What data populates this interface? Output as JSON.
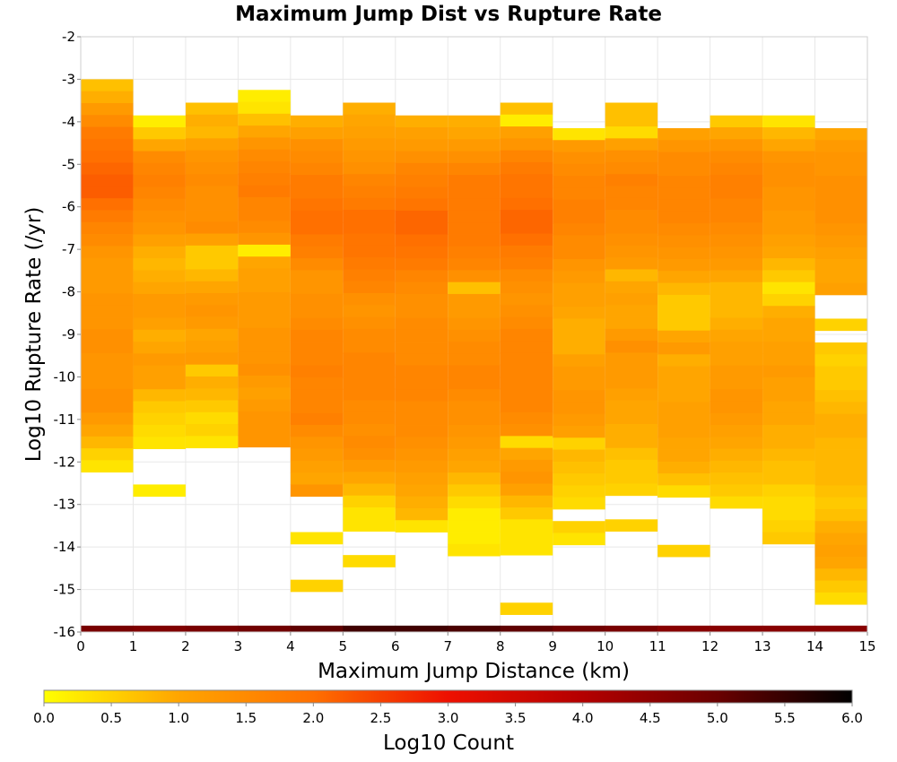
{
  "chart_data": {
    "type": "heatmap",
    "title": "Maximum Jump Dist vs Rupture Rate",
    "xlabel": "Maximum Jump Distance (km)",
    "ylabel": "Log10 Rupture Rate (/yr)",
    "xlim": [
      0,
      15
    ],
    "ylim": [
      -16,
      -2
    ],
    "x_ticks": [
      "0",
      "1",
      "2",
      "3",
      "4",
      "5",
      "6",
      "7",
      "8",
      "9",
      "10",
      "11",
      "12",
      "13",
      "14",
      "15"
    ],
    "y_ticks": [
      "-2",
      "-3",
      "-4",
      "-5",
      "-6",
      "-7",
      "-8",
      "-9",
      "-10",
      "-11",
      "-12",
      "-13",
      "-14",
      "-15",
      "-16"
    ],
    "grid": true,
    "cell_width": 1,
    "cell_height": 0.28,
    "colorbar": {
      "label": "Log10 Count",
      "min": 0,
      "max": 6,
      "ticks": [
        "0.0",
        "0.5",
        "1.0",
        "1.5",
        "2.0",
        "2.5",
        "3.0",
        "3.5",
        "4.0",
        "4.5",
        "5.0",
        "5.5",
        "6.0"
      ],
      "color_stops": [
        "#ffff00",
        "#ffa500",
        "#ff7000",
        "#ee1000",
        "#b40000",
        "#6a0000",
        "#000000"
      ],
      "position": "bottom"
    },
    "columns": [
      {
        "x_start": 0,
        "y_top": -3.0,
        "values": [
          0.7,
          0.9,
          1.2,
          1.5,
          1.8,
          1.9,
          2.0,
          2.1,
          2.2,
          2.2,
          2.0,
          1.8,
          1.6,
          1.5,
          1.3,
          1.2,
          1.2,
          1.2,
          1.3,
          1.3,
          1.3,
          1.4,
          1.4,
          1.3,
          1.3,
          1.3,
          1.4,
          1.4,
          1.2,
          1.0,
          0.8,
          0.5,
          0.3
        ]
      },
      {
        "x_start": 1,
        "y_top": -3.85,
        "values": [
          0.2,
          0.6,
          1.0,
          1.5,
          1.6,
          1.7,
          1.6,
          1.5,
          1.4,
          1.3,
          1.1,
          0.9,
          0.8,
          0.9,
          1.0,
          1.2,
          1.2,
          1.1,
          0.9,
          1.0,
          1.2,
          1.1,
          1.1,
          0.8,
          0.6,
          0.5,
          0.4,
          0.3,
          null,
          null,
          null,
          0.2
        ]
      },
      {
        "x_start": 2,
        "y_top": -3.55,
        "values": [
          0.7,
          0.9,
          0.8,
          1.1,
          1.3,
          1.4,
          1.5,
          1.4,
          1.4,
          1.4,
          1.5,
          1.1,
          0.6,
          0.6,
          0.8,
          1.0,
          1.2,
          1.3,
          1.2,
          1.0,
          1.1,
          1.2,
          0.6,
          0.9,
          0.8,
          0.6,
          0.4,
          0.5,
          0.3
        ]
      },
      {
        "x_start": 3,
        "y_top": -3.25,
        "values": [
          0.2,
          0.3,
          0.7,
          1.0,
          1.3,
          1.5,
          1.6,
          1.7,
          1.8,
          1.6,
          1.6,
          1.5,
          1.3,
          0.2,
          1.0,
          1.1,
          1.1,
          1.2,
          1.2,
          1.2,
          1.3,
          1.3,
          1.3,
          1.4,
          1.2,
          1.1,
          1.2,
          1.3,
          1.3,
          1.3
        ]
      },
      {
        "x_start": 4,
        "y_top": -3.85,
        "values": [
          0.9,
          1.1,
          1.4,
          1.5,
          1.6,
          1.8,
          1.8,
          1.9,
          2.0,
          2.0,
          1.8,
          1.7,
          1.5,
          1.3,
          1.3,
          1.4,
          1.4,
          1.5,
          1.6,
          1.6,
          1.6,
          1.7,
          1.6,
          1.6,
          1.6,
          1.7,
          1.5,
          1.3,
          1.2,
          1.1,
          1.0,
          1.3,
          null,
          null,
          null,
          0.3,
          null,
          null,
          null,
          0.5
        ]
      },
      {
        "x_start": 5,
        "y_top": -3.55,
        "values": [
          0.9,
          1.0,
          1.1,
          1.2,
          1.3,
          1.4,
          1.6,
          1.7,
          1.8,
          2.0,
          2.0,
          1.9,
          1.9,
          1.8,
          1.7,
          1.6,
          1.4,
          1.3,
          1.4,
          1.5,
          1.5,
          1.6,
          1.6,
          1.6,
          1.6,
          1.5,
          1.5,
          1.4,
          1.5,
          1.4,
          1.2,
          1.0,
          0.8,
          0.5,
          0.3,
          0.3,
          null,
          null,
          0.4
        ]
      },
      {
        "x_start": 6,
        "y_top": -3.85,
        "values": [
          0.9,
          1.1,
          1.2,
          1.4,
          1.6,
          1.7,
          1.8,
          1.9,
          2.1,
          2.1,
          2.0,
          1.9,
          1.8,
          1.6,
          1.5,
          1.4,
          1.4,
          1.5,
          1.5,
          1.5,
          1.5,
          1.6,
          1.6,
          1.6,
          1.5,
          1.5,
          1.5,
          1.4,
          1.3,
          1.2,
          1.1,
          1.0,
          0.9,
          0.8,
          0.3
        ]
      },
      {
        "x_start": 7,
        "y_top": -3.85,
        "values": [
          0.9,
          1.0,
          1.2,
          1.4,
          1.6,
          1.8,
          1.8,
          1.8,
          1.8,
          1.8,
          1.8,
          1.7,
          1.6,
          1.4,
          0.7,
          1.2,
          1.2,
          1.3,
          1.4,
          1.5,
          1.5,
          1.6,
          1.6,
          1.5,
          1.4,
          1.4,
          1.3,
          1.2,
          1.1,
          1.0,
          0.8,
          0.6,
          0.4,
          0.2,
          0.2,
          0.2,
          0.3
        ]
      },
      {
        "x_start": 8,
        "y_top": -3.55,
        "values": [
          0.7,
          0.2,
          1.1,
          1.3,
          1.6,
          1.8,
          1.9,
          1.9,
          2.0,
          2.1,
          2.1,
          2.0,
          1.8,
          1.7,
          1.5,
          1.4,
          1.3,
          1.4,
          1.5,
          1.6,
          1.6,
          1.6,
          1.6,
          1.6,
          1.6,
          1.6,
          1.5,
          1.4,
          0.4,
          1.0,
          1.2,
          1.3,
          1.1,
          0.8,
          0.6,
          0.3,
          0.3,
          0.3,
          null,
          null,
          null,
          null,
          0.5
        ]
      },
      {
        "x_start": 9,
        "y_top": -4.15,
        "values": [
          0.3,
          1.2,
          1.4,
          1.5,
          1.6,
          1.6,
          1.7,
          1.7,
          1.6,
          1.5,
          1.5,
          1.3,
          1.2,
          1.1,
          1.1,
          1.0,
          0.9,
          0.9,
          0.9,
          1.1,
          1.2,
          1.2,
          1.3,
          1.3,
          1.2,
          1.1,
          0.5,
          0.8,
          0.7,
          0.6,
          0.5,
          0.4,
          null,
          0.5,
          0.3
        ]
      },
      {
        "x_start": 10,
        "y_top": -3.55,
        "values": [
          0.7,
          0.7,
          0.4,
          1.1,
          1.4,
          1.5,
          1.7,
          1.6,
          1.6,
          1.5,
          1.5,
          1.4,
          1.3,
          1.2,
          0.8,
          1.0,
          1.1,
          1.0,
          1.0,
          1.2,
          1.4,
          1.2,
          1.2,
          1.2,
          1.1,
          1.0,
          1.0,
          0.9,
          0.9,
          0.7,
          0.6,
          0.6,
          0.5,
          null,
          null,
          0.5
        ]
      },
      {
        "x_start": 11,
        "y_top": -4.15,
        "values": [
          1.1,
          1.3,
          1.5,
          1.5,
          1.6,
          1.6,
          1.6,
          1.6,
          1.5,
          1.4,
          1.3,
          1.2,
          1.0,
          0.8,
          0.6,
          0.6,
          0.6,
          1.0,
          1.2,
          0.9,
          1.0,
          1.0,
          1.0,
          1.1,
          1.1,
          1.1,
          1.0,
          1.0,
          0.9,
          0.7,
          0.4,
          null,
          null,
          null,
          null,
          0.5
        ]
      },
      {
        "x_start": 12,
        "y_top": -3.85,
        "values": [
          0.6,
          1.0,
          1.3,
          1.5,
          1.6,
          1.7,
          1.7,
          1.6,
          1.6,
          1.5,
          1.4,
          1.3,
          1.2,
          1.0,
          0.8,
          0.8,
          0.8,
          0.9,
          1.0,
          1.1,
          1.1,
          1.2,
          1.2,
          1.3,
          1.3,
          1.2,
          1.1,
          1.0,
          0.9,
          0.8,
          0.7,
          0.6,
          0.4
        ]
      },
      {
        "x_start": 13,
        "y_top": -3.85,
        "values": [
          0.3,
          0.8,
          1.0,
          1.3,
          1.4,
          1.4,
          1.3,
          1.3,
          1.2,
          1.2,
          1.1,
          1.0,
          0.8,
          0.6,
          0.3,
          0.5,
          0.9,
          1.0,
          1.0,
          1.1,
          1.1,
          1.2,
          1.1,
          1.1,
          1.0,
          1.0,
          0.9,
          0.9,
          0.8,
          0.7,
          0.7,
          0.5,
          0.4,
          0.4,
          0.5,
          0.6
        ]
      },
      {
        "x_start": 14,
        "y_top": -4.15,
        "values": [
          1.0,
          1.2,
          1.3,
          1.3,
          1.4,
          1.4,
          1.4,
          1.4,
          1.3,
          1.2,
          1.1,
          1.0,
          1.0,
          1.1,
          null,
          null,
          0.5,
          null,
          0.6,
          0.5,
          0.6,
          0.6,
          0.7,
          0.8,
          0.9,
          0.9,
          0.8,
          0.8,
          0.8,
          0.8,
          0.7,
          0.6,
          0.7,
          0.9,
          1.0,
          1.1,
          1.0,
          0.8,
          0.6,
          0.4
        ]
      }
    ],
    "bottom_row": {
      "y_top": -15.85,
      "values": [
        4.8,
        4.7,
        4.8,
        4.9,
        5.1,
        5.4,
        5.4,
        5.3,
        5.1,
        4.9,
        4.8,
        4.6,
        4.6,
        4.6,
        4.6
      ]
    }
  }
}
